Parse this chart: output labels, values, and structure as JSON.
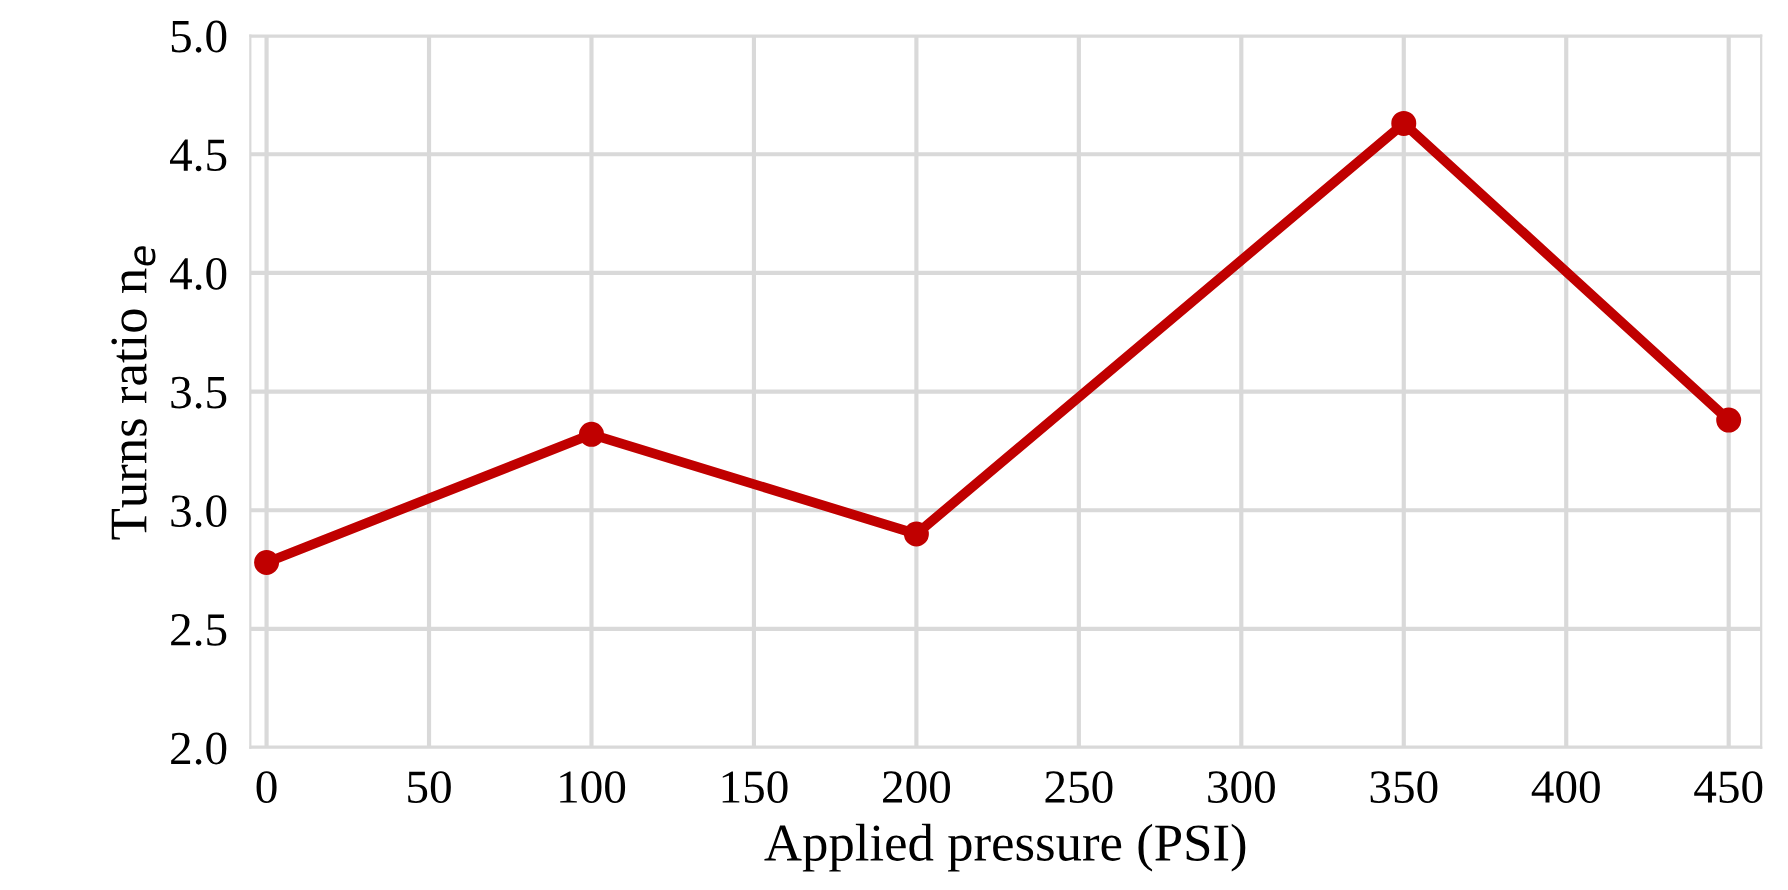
{
  "chart_data": {
    "type": "line",
    "xlabel": "Applied pressure (PSI)",
    "ylabel": "Turns ratio n$_{e}$",
    "x": [
      0,
      100,
      200,
      350,
      450
    ],
    "series": [
      {
        "color": "#c00000",
        "values": [
          2.78,
          3.32,
          2.9,
          4.63,
          3.38
        ]
      }
    ],
    "xlim": [
      -5,
      460
    ],
    "xticks": [
      0,
      50,
      100,
      150,
      200,
      250,
      300,
      350,
      400,
      450
    ],
    "ylim": [
      2.0,
      5.0
    ],
    "yticks": [
      {
        "value": 2.0,
        "label": "2.0"
      },
      {
        "value": 2.5,
        "label": "2.5"
      },
      {
        "value": 3.0,
        "label": "3.0"
      },
      {
        "value": 3.5,
        "label": "3.5"
      },
      {
        "value": 4.0,
        "label": "4.0"
      },
      {
        "value": 4.5,
        "label": "4.5"
      },
      {
        "value": 5.0,
        "label": "5.0"
      }
    ],
    "grid": true,
    "marker": "circle",
    "line_style": "solid"
  }
}
